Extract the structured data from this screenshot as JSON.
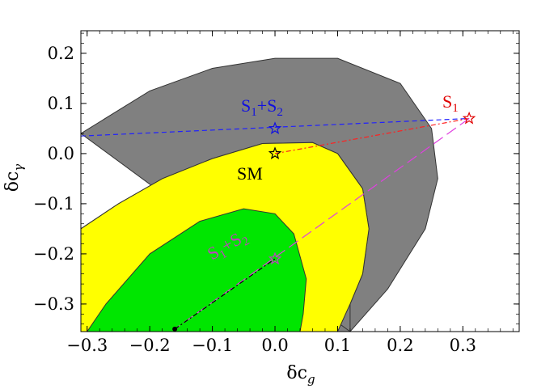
{
  "chart_data": {
    "type": "contour",
    "xlabel": "δc",
    "xlabel_sub": "g",
    "ylabel": "δc",
    "ylabel_sub": "γ",
    "xlim": [
      -0.31,
      0.39
    ],
    "ylim": [
      -0.355,
      0.245
    ],
    "xticks": [
      -0.3,
      -0.2,
      -0.1,
      0.0,
      0.1,
      0.2,
      0.3
    ],
    "xtick_labels": [
      "−0.3",
      "−0.2",
      "−0.1",
      "0.0",
      "0.1",
      "0.2",
      "0.3"
    ],
    "yticks": [
      -0.3,
      -0.2,
      -0.1,
      0.0,
      0.1,
      0.2
    ],
    "ytick_labels": [
      "−0.3",
      "−0.2",
      "−0.1",
      "0.0",
      "0.1",
      "0.2"
    ],
    "regions": [
      {
        "name": "outer",
        "color": "#808080",
        "outline": [
          [
            -0.31,
            0.04
          ],
          [
            -0.2,
            0.125
          ],
          [
            -0.1,
            0.17
          ],
          [
            0.0,
            0.19
          ],
          [
            0.1,
            0.19
          ],
          [
            0.2,
            0.14
          ],
          [
            0.25,
            0.05
          ],
          [
            0.26,
            -0.05
          ],
          [
            0.24,
            -0.15
          ],
          [
            0.18,
            -0.27
          ],
          [
            0.12,
            -0.355
          ],
          [
            -0.31,
            -0.355
          ],
          [
            -0.31,
            -0.15
          ],
          [
            -0.25,
            -0.1
          ],
          [
            -0.18,
            -0.05
          ],
          [
            -0.1,
            -0.01
          ],
          [
            -0.02,
            0.02
          ],
          [
            0.06,
            0.022
          ],
          [
            0.1,
            0.0
          ],
          [
            0.14,
            -0.07
          ],
          [
            0.15,
            -0.15
          ],
          [
            0.14,
            -0.24
          ],
          [
            0.12,
            -0.3
          ],
          [
            0.12,
            -0.355
          ]
        ]
      },
      {
        "name": "middle",
        "color": "#ffff00",
        "outline": [
          [
            -0.31,
            -0.15
          ],
          [
            -0.25,
            -0.1
          ],
          [
            -0.18,
            -0.05
          ],
          [
            -0.1,
            -0.01
          ],
          [
            -0.02,
            0.02
          ],
          [
            0.06,
            0.022
          ],
          [
            0.1,
            0.0
          ],
          [
            0.14,
            -0.07
          ],
          [
            0.15,
            -0.15
          ],
          [
            0.14,
            -0.24
          ],
          [
            0.12,
            -0.3
          ],
          [
            0.1,
            -0.355
          ],
          [
            -0.31,
            -0.355
          ]
        ]
      },
      {
        "name": "inner",
        "color": "#00e600",
        "outline": [
          [
            -0.3,
            -0.355
          ],
          [
            -0.27,
            -0.3
          ],
          [
            -0.2,
            -0.2
          ],
          [
            -0.12,
            -0.135
          ],
          [
            -0.05,
            -0.11
          ],
          [
            0.0,
            -0.12
          ],
          [
            0.03,
            -0.16
          ],
          [
            0.05,
            -0.25
          ],
          [
            0.045,
            -0.32
          ],
          [
            0.04,
            -0.355
          ]
        ]
      }
    ],
    "points": [
      {
        "name": "S1",
        "label": "S",
        "sub": "1",
        "x": 0.31,
        "y": 0.07,
        "color": "#e00000"
      },
      {
        "name": "S1+S2 (blue)",
        "label": "S",
        "sub": "1",
        "label2": "+S",
        "sub2": "2",
        "x": 0.0,
        "y": 0.05,
        "color": "#1010e0"
      },
      {
        "name": "SM",
        "label": "SM",
        "x": 0.0,
        "y": 0.0,
        "color": "#000000"
      },
      {
        "name": "S1+S2 (magenta)",
        "label": "S",
        "sub": "1",
        "label2": "+S",
        "sub2": "2",
        "x": 0.0,
        "y": -0.21,
        "color": "#c040c0"
      },
      {
        "name": "best-fit",
        "x": -0.16,
        "y": -0.35,
        "color": "#000000"
      }
    ],
    "lines": [
      {
        "name": "blue-dashed",
        "color": "#2020ff",
        "dash": "6,4",
        "points": [
          [
            -0.31,
            0.035
          ],
          [
            0.31,
            0.07
          ]
        ]
      },
      {
        "name": "red-dashdot",
        "color": "#ff2020",
        "dash": "6,3,2,3",
        "points": [
          [
            0.0,
            0.0
          ],
          [
            0.31,
            0.07
          ]
        ]
      },
      {
        "name": "magenta-longdash",
        "color": "#e040e0",
        "dash": "14,6",
        "points": [
          [
            0.31,
            0.07
          ],
          [
            -0.16,
            -0.35
          ]
        ]
      },
      {
        "name": "black-dashdot",
        "color": "#000000",
        "dash": "6,3,2,3",
        "points": [
          [
            -0.16,
            -0.35
          ],
          [
            0.0,
            -0.21
          ]
        ]
      }
    ]
  }
}
